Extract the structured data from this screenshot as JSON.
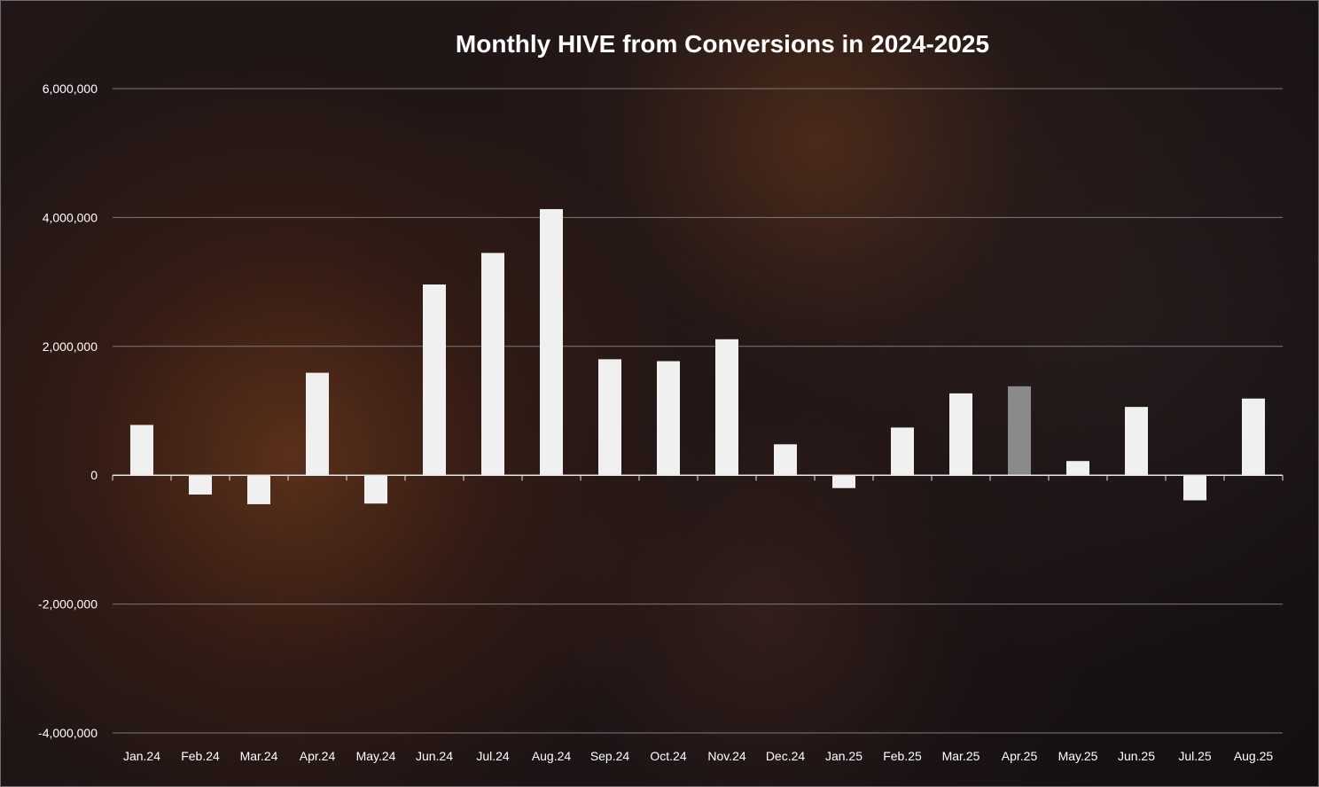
{
  "chart_data": {
    "type": "bar",
    "title": "Monthly HIVE from Conversions in 2024-2025",
    "xlabel": "",
    "ylabel": "",
    "categories": [
      "Jan.24",
      "Feb.24",
      "Mar.24",
      "Apr.24",
      "May.24",
      "Jun.24",
      "Jul.24",
      "Aug.24",
      "Sep.24",
      "Oct.24",
      "Nov.24",
      "Dec.24",
      "Jan.25",
      "Feb.25",
      "Mar.25",
      "Apr.25",
      "May.25",
      "Jun.25",
      "Jul.25",
      "Aug.25"
    ],
    "values": [
      780000,
      -300000,
      -450000,
      1590000,
      -440000,
      2960000,
      3450000,
      4130000,
      1800000,
      1770000,
      2110000,
      480000,
      -200000,
      740000,
      1270000,
      1380000,
      220000,
      1060000,
      -390000,
      1190000
    ],
    "ylim": [
      -4000000,
      6000000
    ],
    "yticks": [
      6000000,
      4000000,
      2000000,
      0,
      -2000000,
      -4000000
    ],
    "ytick_labels": [
      "6,000,000",
      "4,000,000",
      "2,000,000",
      "0",
      "-2,000,000",
      "-4,000,000"
    ],
    "grid": true,
    "legend": "none",
    "colors": {
      "bar": "#f0f0f0",
      "highlight_bar": "#8a8a8a",
      "grid": "#7a7a7a",
      "zero_line": "#e6e6e6",
      "text": "#ffffff"
    },
    "highlight_index": 15
  }
}
